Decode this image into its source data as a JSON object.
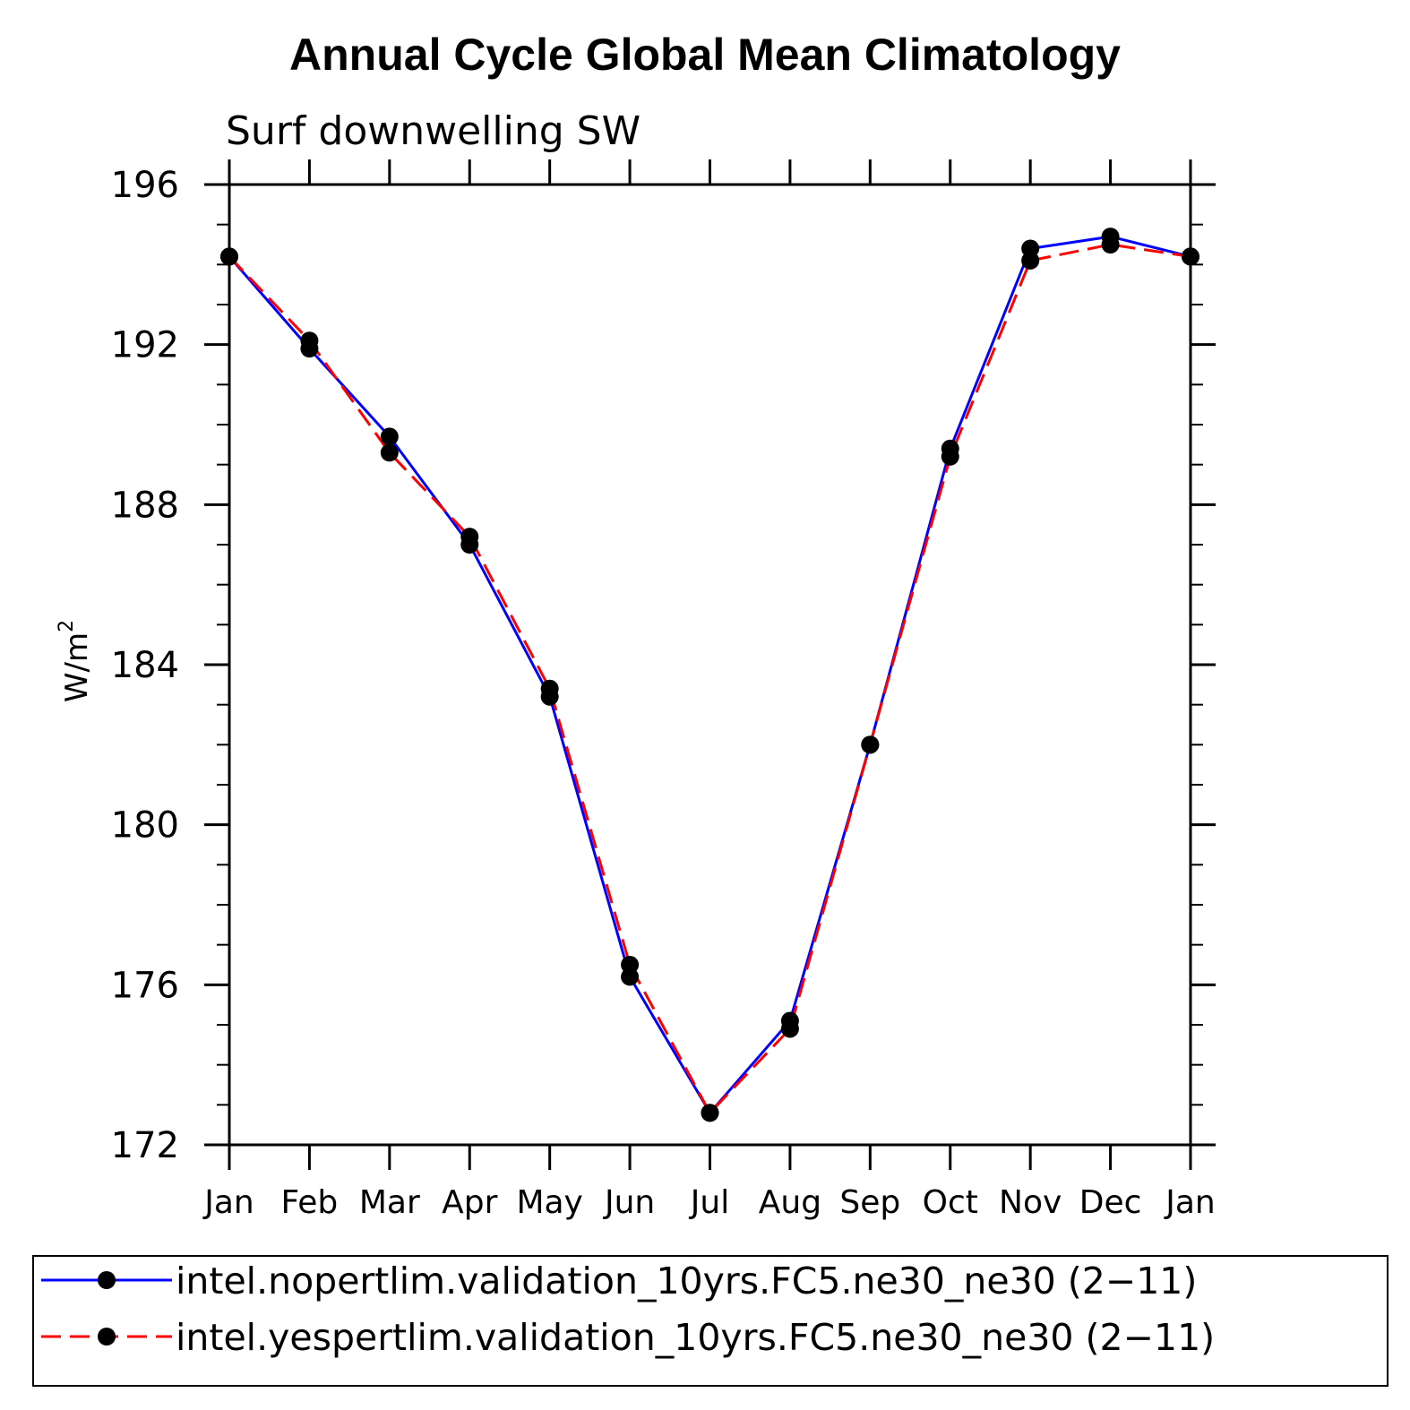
{
  "chart_data": {
    "type": "line",
    "title": "Annual Cycle Global Mean Climatology",
    "subtitle": "Surf downwelling SW",
    "xlabel": "",
    "ylabel": "W/m",
    "ylabel_superscript": "2",
    "ylim": [
      172,
      196
    ],
    "yticks": [
      172,
      176,
      180,
      184,
      188,
      192,
      196
    ],
    "yminor_step": 1,
    "categories": [
      "Jan",
      "Feb",
      "Mar",
      "Apr",
      "May",
      "Jun",
      "Jul",
      "Aug",
      "Sep",
      "Oct",
      "Nov",
      "Dec",
      "Jan"
    ],
    "series": [
      {
        "name": "intel.nopertlim.validation_10yrs.FC5.ne30_ne30 (2−11)",
        "color": "#0000ff",
        "dash": "solid",
        "values": [
          194.2,
          191.9,
          189.7,
          187.0,
          183.2,
          176.2,
          172.8,
          175.1,
          182.0,
          189.4,
          194.4,
          194.7,
          194.2
        ]
      },
      {
        "name": "intel.yespertlim.validation_10yrs.FC5.ne30_ne30 (2−11)",
        "color": "#ff0000",
        "dash": "dashed",
        "values": [
          194.2,
          192.1,
          189.3,
          187.2,
          183.4,
          176.5,
          172.8,
          174.9,
          182.0,
          189.2,
          194.1,
          194.5,
          194.2
        ]
      }
    ],
    "legend_position": "bottom",
    "grid": false
  }
}
